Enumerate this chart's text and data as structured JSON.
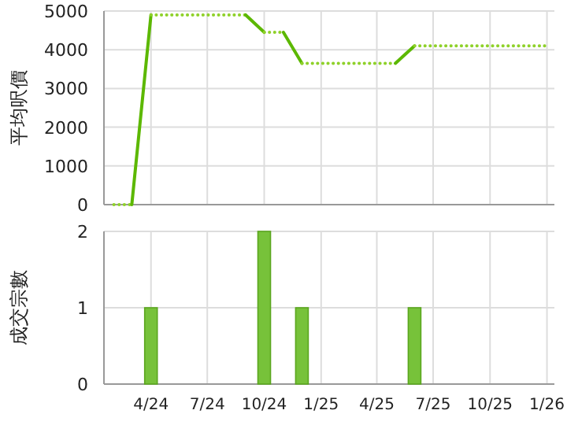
{
  "chart_data": [
    {
      "type": "line",
      "ylabel": "平均呎價",
      "xlim": [
        "2024-01-16",
        "2026-01-13"
      ],
      "xticks": [
        {
          "value": "2024-04",
          "label": null
        },
        {
          "value": "2024-07",
          "label": null
        },
        {
          "value": "2024-10",
          "label": null
        },
        {
          "value": "2025-01",
          "label": null
        },
        {
          "value": "2025-04",
          "label": null
        },
        {
          "value": "2025-07",
          "label": null
        },
        {
          "value": "2025-10",
          "label": null
        },
        {
          "value": "2026-01",
          "label": null
        }
      ],
      "ylim": [
        0,
        5000
      ],
      "yticks": [
        0,
        1000,
        2000,
        3000,
        4000,
        5000
      ],
      "grid": true,
      "tick_labels": "y",
      "series": [
        {
          "color": "#8fd12a",
          "line_style": "dotted",
          "x": [
            "2024-02",
            "2024-03"
          ],
          "values": [
            0,
            0
          ]
        },
        {
          "color": "#5cb800",
          "line_style": "solid",
          "x": [
            "2024-03",
            "2024-04"
          ],
          "values": [
            0,
            4900
          ]
        },
        {
          "color": "#8fd12a",
          "line_style": "dotted",
          "x": [
            "2024-04",
            "2024-09"
          ],
          "values": [
            4900,
            4900
          ]
        },
        {
          "color": "#5cb800",
          "line_style": "solid",
          "x": [
            "2024-09",
            "2024-10"
          ],
          "values": [
            4900,
            4450
          ]
        },
        {
          "color": "#8fd12a",
          "line_style": "dotted",
          "x": [
            "2024-10",
            "2024-11"
          ],
          "values": [
            4450,
            4450
          ]
        },
        {
          "color": "#5cb800",
          "line_style": "solid",
          "x": [
            "2024-11",
            "2024-12"
          ],
          "values": [
            4450,
            3650
          ]
        },
        {
          "color": "#8fd12a",
          "line_style": "dotted",
          "x": [
            "2024-12",
            "2025-05"
          ],
          "values": [
            3650,
            3650
          ]
        },
        {
          "color": "#5cb800",
          "line_style": "solid",
          "x": [
            "2025-05",
            "2025-06"
          ],
          "values": [
            3650,
            4100
          ]
        },
        {
          "color": "#8fd12a",
          "line_style": "dotted",
          "x": [
            "2025-06",
            "2026-01"
          ],
          "values": [
            4100,
            4100
          ]
        }
      ]
    },
    {
      "type": "bar",
      "ylabel": "成交宗數",
      "xlim": [
        "2024-01-16",
        "2026-01-13"
      ],
      "xticks": [
        {
          "value": "2024-04",
          "label": "4/24"
        },
        {
          "value": "2024-07",
          "label": "7/24"
        },
        {
          "value": "2024-10",
          "label": "10/24"
        },
        {
          "value": "2025-01",
          "label": "1/25"
        },
        {
          "value": "2025-04",
          "label": "4/25"
        },
        {
          "value": "2025-07",
          "label": "7/25"
        },
        {
          "value": "2025-10",
          "label": "10/25"
        },
        {
          "value": "2026-01",
          "label": "1/26"
        }
      ],
      "ylim": [
        0,
        2
      ],
      "yticks": [
        0,
        1,
        2
      ],
      "grid": true,
      "x": [
        "2024-04",
        "2024-10",
        "2024-12",
        "2025-06"
      ],
      "values": [
        1,
        2,
        1,
        1
      ],
      "color": "#77c23a"
    }
  ]
}
